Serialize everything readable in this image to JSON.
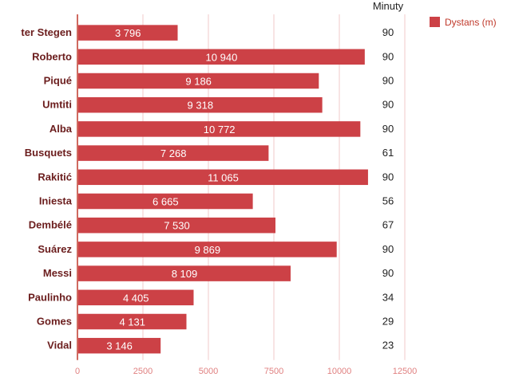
{
  "chart_data": {
    "type": "bar",
    "orientation": "horizontal",
    "categories": [
      "ter Stegen",
      "Roberto",
      "Piqué",
      "Umtiti",
      "Alba",
      "Busquets",
      "Rakitić",
      "Iniesta",
      "Dembélé",
      "Suárez",
      "Messi",
      "Paulinho",
      "Gomes",
      "Vidal"
    ],
    "series": [
      {
        "name": "Dystans (m)",
        "values": [
          3796,
          10940,
          9186,
          9318,
          10772,
          7268,
          11065,
          6665,
          7530,
          9869,
          8109,
          4405,
          4131,
          3146
        ],
        "value_labels": [
          "3 796",
          "10 940",
          "9 186",
          "9 318",
          "10 772",
          "7 268",
          "11 065",
          "6 665",
          "7 530",
          "9 869",
          "8 109",
          "4 405",
          "4 131",
          "3 146"
        ]
      }
    ],
    "minutes_header": "Minuty",
    "minutes": [
      "90",
      "90",
      "90",
      "90",
      "90",
      "61",
      "90",
      "56",
      "67",
      "90",
      "90",
      "34",
      "29",
      "23"
    ],
    "xlim": [
      0,
      12500
    ],
    "xticks": [
      0,
      2500,
      5000,
      7500,
      10000,
      12500
    ],
    "grid": true,
    "legend_position": "top-right",
    "colors": {
      "bar": "#cc4146",
      "grid": "#f2c9c9",
      "axis": "#c0392b",
      "label": "#6b1d1d",
      "tick": "#e08080"
    }
  }
}
